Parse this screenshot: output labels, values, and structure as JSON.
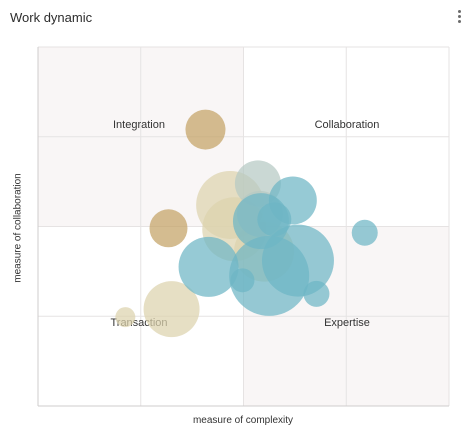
{
  "header": {
    "title": "Work dynamic",
    "menu_icon": "more-vertical-icon"
  },
  "chart_data": {
    "type": "scatter",
    "title": "Work dynamic",
    "xlabel": "measure of complexity",
    "ylabel": "measure of collaboration",
    "xlim": [
      0,
      4
    ],
    "ylim": [
      0,
      4
    ],
    "grid": true,
    "quadrants": [
      "Integration",
      "Collaboration",
      "Transaction",
      "Expertise"
    ],
    "series": [
      {
        "color": "#c4a265",
        "points": [
          {
            "x": 1.63,
            "y": 3.08,
            "r": 20
          },
          {
            "x": 1.27,
            "y": 1.98,
            "r": 19
          }
        ]
      },
      {
        "color": "#ddd3ad",
        "points": [
          {
            "x": 1.87,
            "y": 2.24,
            "r": 34
          },
          {
            "x": 1.91,
            "y": 1.97,
            "r": 32
          },
          {
            "x": 2.2,
            "y": 1.72,
            "r": 30
          },
          {
            "x": 1.3,
            "y": 1.08,
            "r": 28
          },
          {
            "x": 0.85,
            "y": 0.99,
            "r": 10
          }
        ]
      },
      {
        "color": "#b6c9c4",
        "points": [
          {
            "x": 2.14,
            "y": 2.48,
            "r": 23
          },
          {
            "x": 2.16,
            "y": 2.14,
            "r": 23
          }
        ]
      },
      {
        "color": "#6eb6c5",
        "points": [
          {
            "x": 2.48,
            "y": 2.29,
            "r": 24
          },
          {
            "x": 2.17,
            "y": 2.06,
            "r": 28
          },
          {
            "x": 2.3,
            "y": 2.08,
            "r": 17
          },
          {
            "x": 2.53,
            "y": 1.62,
            "r": 36
          },
          {
            "x": 2.25,
            "y": 1.45,
            "r": 40
          },
          {
            "x": 1.66,
            "y": 1.55,
            "r": 30
          },
          {
            "x": 1.99,
            "y": 1.4,
            "r": 12
          },
          {
            "x": 3.18,
            "y": 1.93,
            "r": 13
          },
          {
            "x": 2.71,
            "y": 1.25,
            "r": 13
          }
        ]
      }
    ]
  }
}
